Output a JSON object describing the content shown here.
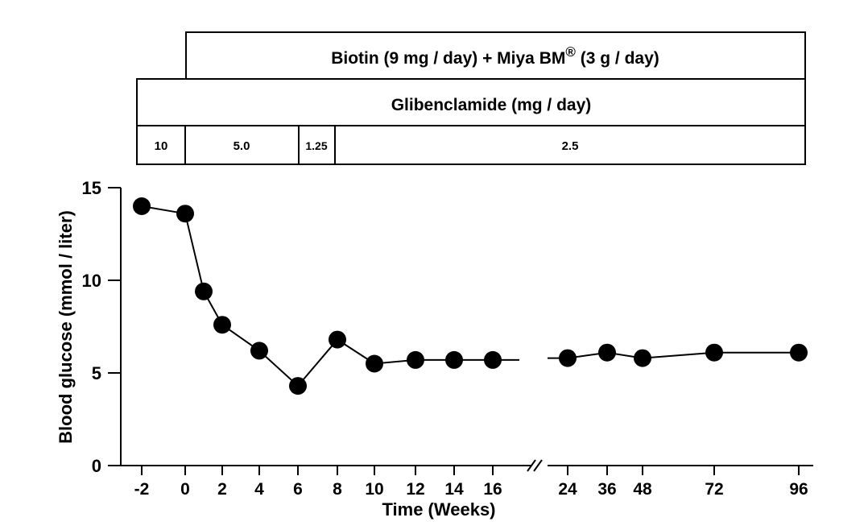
{
  "chart_data": {
    "type": "line",
    "xlabel": "Time  (Weeks)",
    "ylabel": "Blood glucose  (mmol / liter)",
    "ylim": [
      0,
      15
    ],
    "yticks": [
      0,
      5,
      10,
      15
    ],
    "x_ticks": [
      "-2",
      "0",
      "2",
      "4",
      "6",
      "8",
      "10",
      "12",
      "14",
      "16",
      "24",
      "36",
      "48",
      "72",
      "96"
    ],
    "axis_break": "after 16 weeks",
    "series": [
      {
        "x": [
          "-2",
          "0",
          "1",
          "2",
          "4",
          "6",
          "8",
          "10",
          "12",
          "14",
          "16",
          "24",
          "36",
          "48",
          "72",
          "96"
        ],
        "values": [
          14.0,
          13.6,
          9.4,
          7.6,
          6.2,
          4.3,
          6.8,
          5.5,
          5.7,
          5.7,
          5.7,
          5.8,
          6.1,
          5.8,
          6.1,
          6.1
        ]
      }
    ],
    "regimen": {
      "biotin_label": "Biotin  (9 mg / day) + Miya BM",
      "registered_mark": "®",
      "biotin_suffix": " (3 g / day)",
      "glibenclamide_label": "Glibenclamide  (mg / day)",
      "doses": [
        "10",
        "5.0",
        "1.25",
        "2.5"
      ]
    }
  }
}
